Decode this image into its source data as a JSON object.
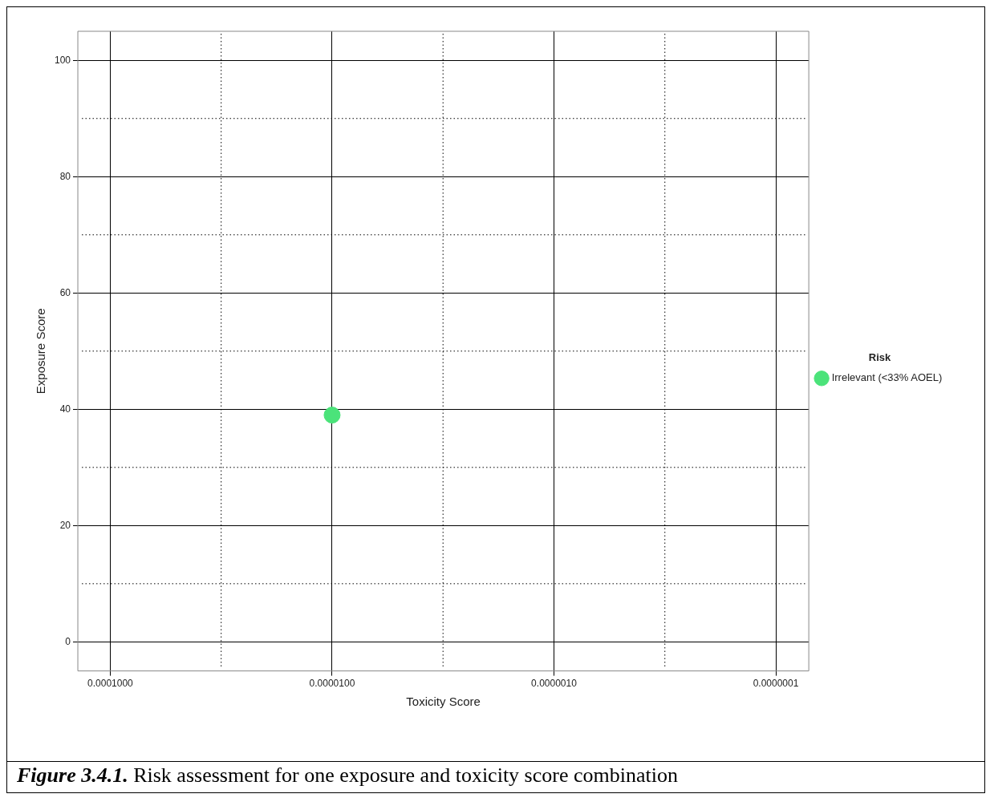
{
  "chart_data": {
    "type": "scatter",
    "xlabel": "Toxicity Score",
    "ylabel": "Exposure Score",
    "legend_title": "Risk",
    "series": [
      {
        "name": "Irrelevant (<33% AOEL)",
        "color": "#4be37a",
        "x": [
          1e-05
        ],
        "values": [
          39
        ]
      }
    ],
    "log": "x",
    "xlim": [
      0.00014,
      7.1e-08
    ],
    "ylim": [
      -5,
      105
    ],
    "xticks": [
      {
        "value": 0.0001,
        "label": "0.0001000"
      },
      {
        "value": 1e-05,
        "label": "0.0000100"
      },
      {
        "value": 1e-06,
        "label": "0.0000010"
      },
      {
        "value": 1e-07,
        "label": "0.0000001"
      }
    ],
    "yticks": [
      0,
      20,
      40,
      60,
      80,
      100
    ],
    "grid": true,
    "legend": "right",
    "marker": "circle",
    "annotations": [
      "Figure 3.4.1. Risk assessment for one exposure and toxicity score combination"
    ]
  }
}
